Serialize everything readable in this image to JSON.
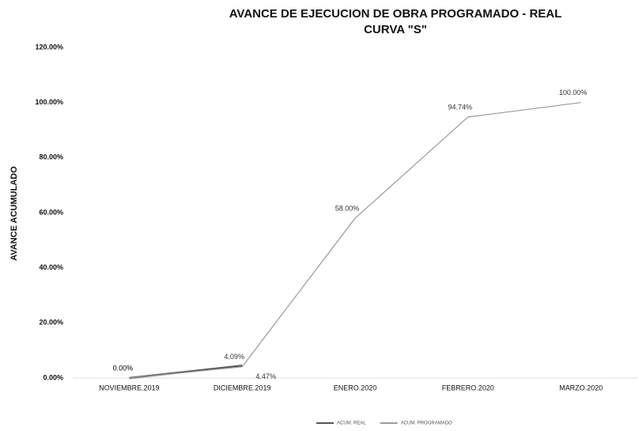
{
  "chart_data": {
    "type": "line",
    "title": "AVANCE DE EJECUCION DE OBRA PROGRAMADO - REAL",
    "subtitle": "CURVA \"S\"",
    "y_label": "AVANCE ACUMULADO",
    "categories": [
      "NOVIEMBRE.2019",
      "DICIEMBRE.2019",
      "ENERO.2020",
      "FEBRERO.2020",
      "MARZO.2020"
    ],
    "series": [
      {
        "name": "ACUM. REAL",
        "color": "#555555",
        "values": [
          0,
          4.47,
          null,
          null,
          null
        ],
        "value_labels": [
          "0.00%",
          "4.47%",
          null,
          null,
          null
        ]
      },
      {
        "name": "ACUM. PROGRAMADO",
        "color": "#9a9a9a",
        "values": [
          0,
          4.09,
          58,
          94.74,
          100
        ],
        "value_labels": [
          "0.00%",
          "4.09%",
          "58.00%",
          "94.74%",
          "100.00%"
        ]
      }
    ],
    "ylim": [
      0,
      120
    ],
    "yticks": [
      {
        "value": 0,
        "label": "0.00%"
      },
      {
        "value": 20,
        "label": "20.00%"
      },
      {
        "value": 40,
        "label": "40.00%"
      },
      {
        "value": 60,
        "label": "60.00%"
      },
      {
        "value": 80,
        "label": "80.00%"
      },
      {
        "value": 100,
        "label": "100.00%"
      },
      {
        "value": 120,
        "label": "120.00%"
      }
    ],
    "grid": false,
    "legend": "bottom"
  }
}
